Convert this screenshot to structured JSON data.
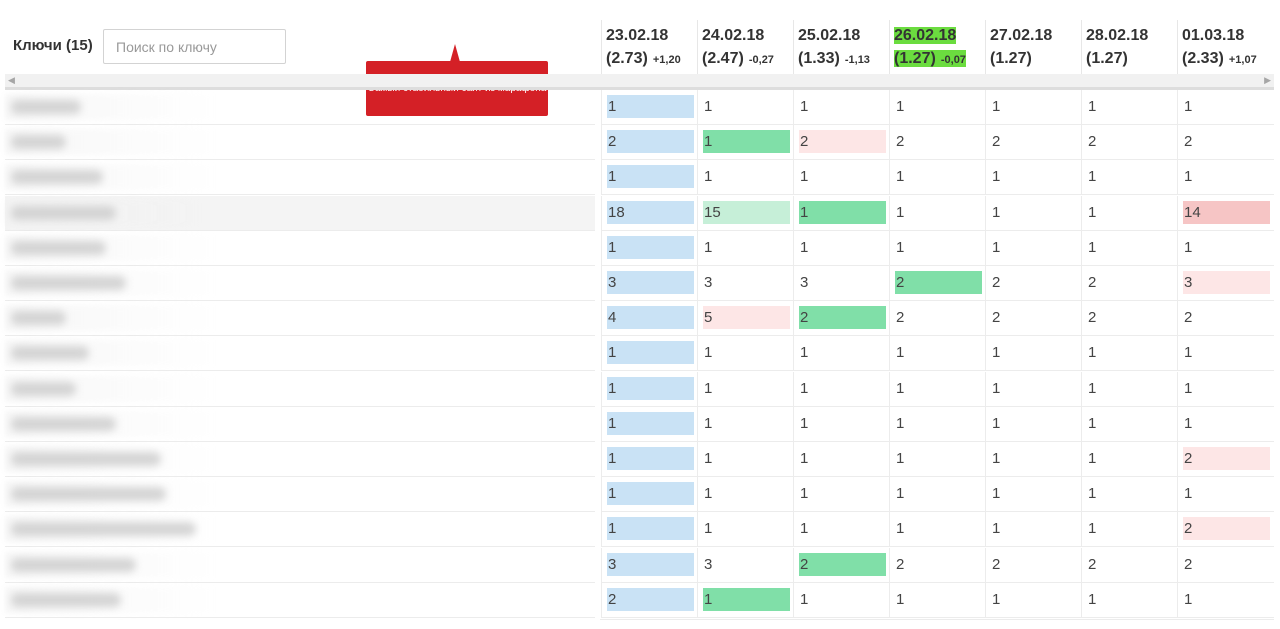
{
  "keywords_header": {
    "title": "Ключи (15)"
  },
  "search": {
    "placeholder": "Поиск по ключу",
    "value": ""
  },
  "tooltip": {
    "text": "Самый стабильный сайт из марафона"
  },
  "dates": [
    {
      "date": "23.02.18",
      "score": "(2.73)",
      "delta": "+1,20",
      "highlight": false
    },
    {
      "date": "24.02.18",
      "score": "(2.47)",
      "delta": "-0,27",
      "highlight": false
    },
    {
      "date": "25.02.18",
      "score": "(1.33)",
      "delta": "-1,13",
      "highlight": false
    },
    {
      "date": "26.02.18",
      "score": "(1.27)",
      "delta": "-0,07",
      "highlight": true
    },
    {
      "date": "27.02.18",
      "score": "(1.27)",
      "delta": "",
      "highlight": false
    },
    {
      "date": "28.02.18",
      "score": "(1.27)",
      "delta": "",
      "highlight": false
    },
    {
      "date": "01.03.18",
      "score": "(2.33)",
      "delta": "+1,07",
      "highlight": false
    }
  ],
  "colors": {
    "base": "#c9e2f5",
    "improved": "#80dfa8",
    "improved_light": "#c6efd8",
    "worsened": "#fde6e6",
    "worsened_strong": "#f6c5c5",
    "highlight": "#6bdc3f",
    "tooltip": "#d42026"
  },
  "rows": [
    {
      "positions": [
        "1",
        "1",
        "1",
        "1",
        "1",
        "1",
        "1"
      ],
      "status": [
        "base",
        "",
        "",
        "",
        "",
        "",
        ""
      ]
    },
    {
      "positions": [
        "2",
        "1",
        "2",
        "2",
        "2",
        "2",
        "2"
      ],
      "status": [
        "base",
        "up",
        "down",
        "",
        "",
        "",
        ""
      ]
    },
    {
      "positions": [
        "1",
        "1",
        "1",
        "1",
        "1",
        "1",
        "1"
      ],
      "status": [
        "base",
        "",
        "",
        "",
        "",
        "",
        ""
      ]
    },
    {
      "positions": [
        "18",
        "15",
        "1",
        "1",
        "1",
        "1",
        "14"
      ],
      "status": [
        "base",
        "up-light",
        "up",
        "",
        "",
        "",
        "down-strong"
      ]
    },
    {
      "positions": [
        "1",
        "1",
        "1",
        "1",
        "1",
        "1",
        "1"
      ],
      "status": [
        "base",
        "",
        "",
        "",
        "",
        "",
        ""
      ]
    },
    {
      "positions": [
        "3",
        "3",
        "3",
        "2",
        "2",
        "2",
        "3"
      ],
      "status": [
        "base",
        "",
        "",
        "up",
        "",
        "",
        "down"
      ]
    },
    {
      "positions": [
        "4",
        "5",
        "2",
        "2",
        "2",
        "2",
        "2"
      ],
      "status": [
        "base",
        "down",
        "up",
        "",
        "",
        "",
        ""
      ]
    },
    {
      "positions": [
        "1",
        "1",
        "1",
        "1",
        "1",
        "1",
        "1"
      ],
      "status": [
        "base",
        "",
        "",
        "",
        "",
        "",
        ""
      ]
    },
    {
      "positions": [
        "1",
        "1",
        "1",
        "1",
        "1",
        "1",
        "1"
      ],
      "status": [
        "base",
        "",
        "",
        "",
        "",
        "",
        ""
      ]
    },
    {
      "positions": [
        "1",
        "1",
        "1",
        "1",
        "1",
        "1",
        "1"
      ],
      "status": [
        "base",
        "",
        "",
        "",
        "",
        "",
        ""
      ]
    },
    {
      "positions": [
        "1",
        "1",
        "1",
        "1",
        "1",
        "1",
        "2"
      ],
      "status": [
        "base",
        "",
        "",
        "",
        "",
        "",
        "down"
      ]
    },
    {
      "positions": [
        "1",
        "1",
        "1",
        "1",
        "1",
        "1",
        "1"
      ],
      "status": [
        "base",
        "",
        "",
        "",
        "",
        "",
        ""
      ]
    },
    {
      "positions": [
        "1",
        "1",
        "1",
        "1",
        "1",
        "1",
        "2"
      ],
      "status": [
        "base",
        "",
        "",
        "",
        "",
        "",
        "down"
      ]
    },
    {
      "positions": [
        "3",
        "3",
        "2",
        "2",
        "2",
        "2",
        "2"
      ],
      "status": [
        "base",
        "",
        "up",
        "",
        "",
        "",
        ""
      ]
    },
    {
      "positions": [
        "2",
        "1",
        "1",
        "1",
        "1",
        "1",
        "1"
      ],
      "status": [
        "base",
        "up",
        "",
        "",
        "",
        "",
        ""
      ]
    }
  ]
}
